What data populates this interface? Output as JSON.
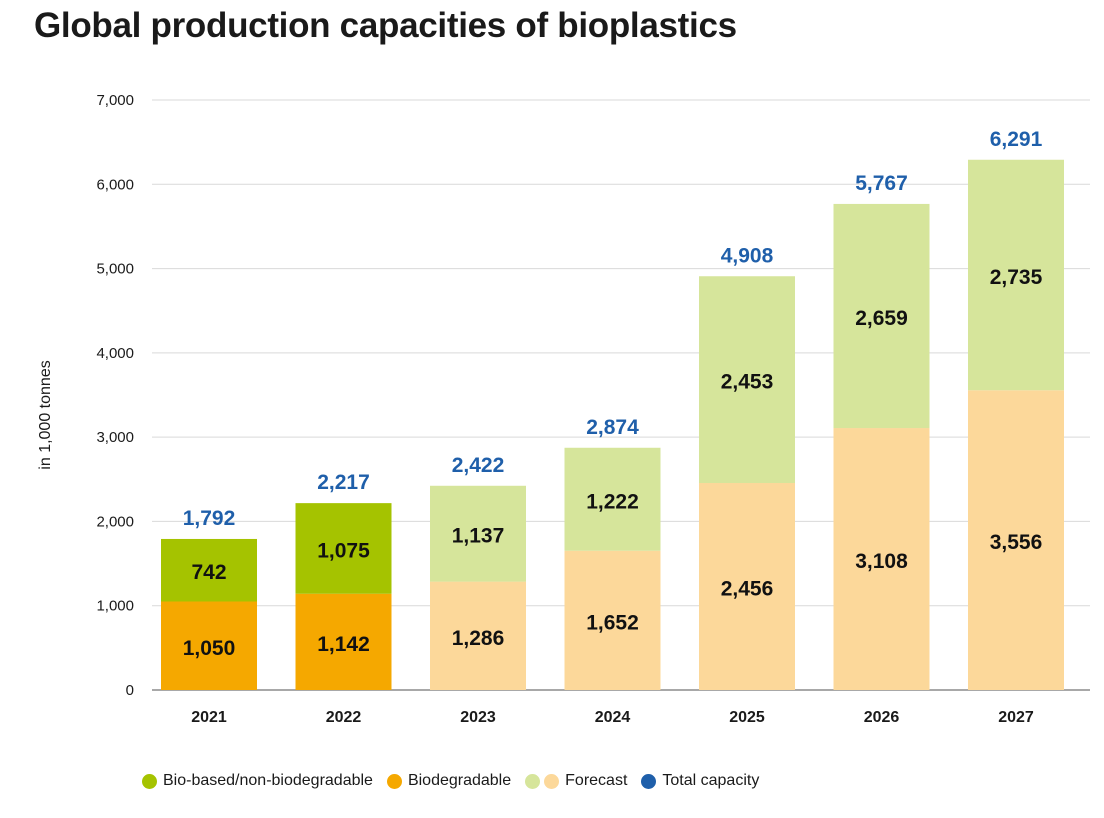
{
  "title": "Global production capacities of bioplastics",
  "chart_data": {
    "type": "bar",
    "stacked": true,
    "title": "Global production capacities of bioplastics",
    "xlabel": "",
    "ylabel": "in 1,000 tonnes",
    "ylim": [
      0,
      7000
    ],
    "yticks": [
      0,
      1000,
      2000,
      3000,
      4000,
      5000,
      6000,
      7000
    ],
    "ytick_labels": [
      "0",
      "1,000",
      "2,000",
      "3,000",
      "4,000",
      "5,000",
      "6,000",
      "7,000"
    ],
    "grid": true,
    "categories": [
      "2021",
      "2022",
      "2023",
      "2024",
      "2025",
      "2026",
      "2027"
    ],
    "series": [
      {
        "name": "Biodegradable",
        "values": [
          1050,
          1142,
          1286,
          1652,
          2456,
          3108,
          3556
        ],
        "labels": [
          "1,050",
          "1,142",
          "1,286",
          "1,652",
          "2,456",
          "3,108",
          "3,556"
        ],
        "colors": [
          "#f5a800",
          "#f5a800",
          "#fcd89a",
          "#fcd89a",
          "#fcd89a",
          "#fcd89a",
          "#fcd89a"
        ]
      },
      {
        "name": "Bio-based/non-biodegradable",
        "values": [
          742,
          1075,
          1137,
          1222,
          2453,
          2659,
          2735
        ],
        "labels": [
          "742",
          "1,075",
          "1,137",
          "1,222",
          "2,453",
          "2,659",
          "2,735"
        ],
        "colors": [
          "#a5c300",
          "#a5c300",
          "#d6e59b",
          "#d6e59b",
          "#d6e59b",
          "#d6e59b",
          "#d6e59b"
        ]
      }
    ],
    "totals": {
      "name": "Total capacity",
      "values": [
        1792,
        2217,
        2422,
        2874,
        4908,
        5767,
        6291
      ],
      "labels": [
        "1,792",
        "2,217",
        "2,422",
        "2,874",
        "4,908",
        "5,767",
        "6,291"
      ],
      "color": "#1f5faa"
    },
    "legend": {
      "placement": "bottom",
      "items": [
        {
          "label": "Bio-based/non-biodegradable",
          "colors": [
            "#a5c300"
          ]
        },
        {
          "label": "Biodegradable",
          "colors": [
            "#f5a800"
          ]
        },
        {
          "label": "Forecast",
          "colors": [
            "#d6e59b",
            "#fcd89a"
          ]
        },
        {
          "label": "Total capacity",
          "colors": [
            "#1f5faa"
          ]
        }
      ]
    }
  }
}
